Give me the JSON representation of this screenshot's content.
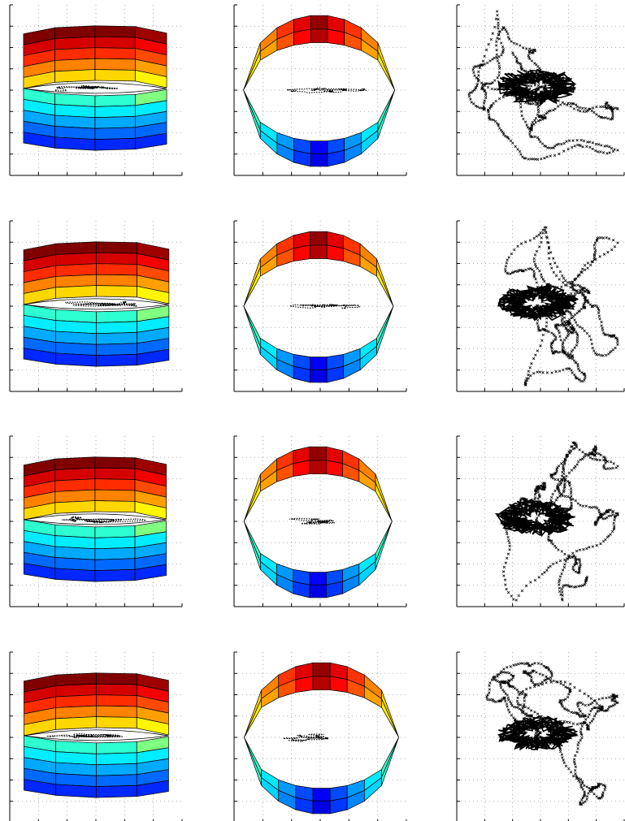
{
  "figure": {
    "rows": 4,
    "cols": 3,
    "colormap": "jet",
    "grid": true,
    "grid_style": "dotted",
    "tick_labels_visible": false
  },
  "chart_data": [
    {
      "row": 1,
      "col": 1,
      "type": "surface",
      "view": "side",
      "shape": "octagonal-band",
      "colormap": "jet",
      "grid": true,
      "overlay": "trajectory"
    },
    {
      "row": 1,
      "col": 2,
      "type": "surface",
      "view": "side",
      "shape": "lens-band",
      "colormap": "jet",
      "grid": true,
      "overlay": "trajectory"
    },
    {
      "row": 1,
      "col": 3,
      "type": "scatter",
      "marker": "x",
      "color": "#000000",
      "grid": true,
      "title": "",
      "xlabel": "",
      "ylabel": ""
    },
    {
      "row": 2,
      "col": 1,
      "type": "surface",
      "view": "side",
      "shape": "octagonal-band",
      "colormap": "jet",
      "grid": true,
      "overlay": "trajectory"
    },
    {
      "row": 2,
      "col": 2,
      "type": "surface",
      "view": "side",
      "shape": "lens-band",
      "colormap": "jet",
      "grid": true,
      "overlay": "trajectory"
    },
    {
      "row": 2,
      "col": 3,
      "type": "scatter",
      "marker": "x",
      "color": "#000000",
      "grid": true,
      "title": "",
      "xlabel": "",
      "ylabel": ""
    },
    {
      "row": 3,
      "col": 1,
      "type": "surface",
      "view": "side",
      "shape": "octagonal-band",
      "colormap": "jet",
      "grid": true,
      "overlay": "trajectory"
    },
    {
      "row": 3,
      "col": 2,
      "type": "surface",
      "view": "side",
      "shape": "lens-band",
      "colormap": "jet",
      "grid": true,
      "overlay": "trajectory"
    },
    {
      "row": 3,
      "col": 3,
      "type": "scatter",
      "marker": "x",
      "color": "#000000",
      "grid": true,
      "title": "",
      "xlabel": "",
      "ylabel": ""
    },
    {
      "row": 4,
      "col": 1,
      "type": "surface",
      "view": "side",
      "shape": "octagonal-band",
      "colormap": "jet",
      "grid": true,
      "overlay": "trajectory"
    },
    {
      "row": 4,
      "col": 2,
      "type": "surface",
      "view": "side",
      "shape": "lens-band",
      "colormap": "jet",
      "grid": true,
      "overlay": "trajectory"
    },
    {
      "row": 4,
      "col": 3,
      "type": "scatter",
      "marker": "x",
      "color": "#000000",
      "grid": true,
      "title": "",
      "xlabel": "",
      "ylabel": ""
    }
  ]
}
